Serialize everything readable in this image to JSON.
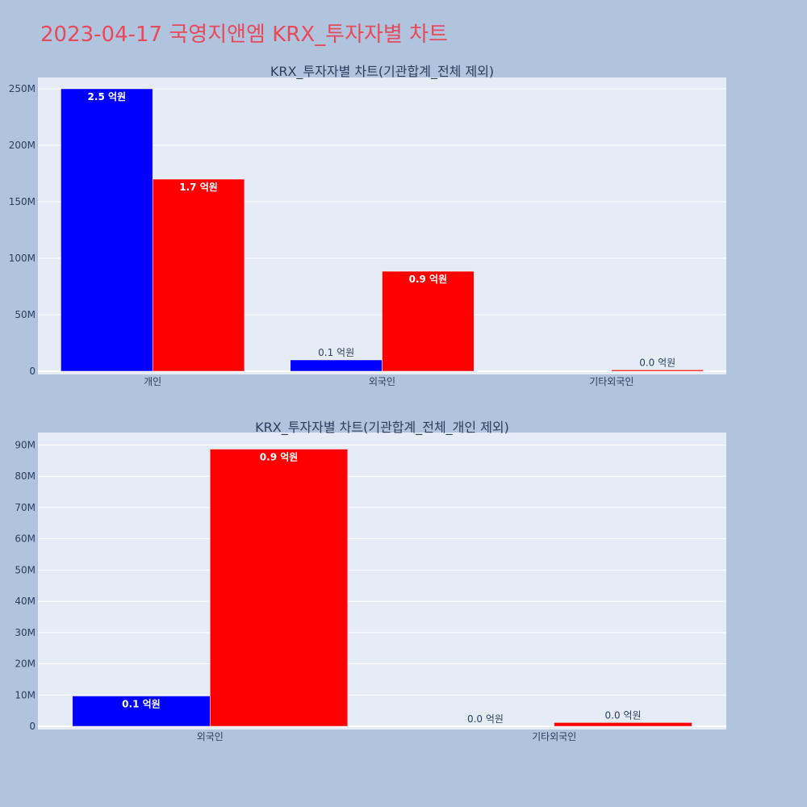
{
  "page": {
    "title": "2023-04-17 국영지앤엠 KRX_투자자별 차트"
  },
  "colors": {
    "background": "#b0c4de",
    "plot_background": "#e5ecf6",
    "series_buy": "#0000ff",
    "series_sell": "#ff0000",
    "title": "#e8495b",
    "text": "#2a3f5f"
  },
  "chart_data": [
    {
      "type": "bar",
      "title": "KRX_투자자별 차트(기관합계_전체 제외)",
      "categories": [
        "개인",
        "외국인",
        "기타외국인"
      ],
      "series": [
        {
          "color": "#0000ff",
          "values": [
            250000000,
            10000000,
            0
          ],
          "labels": [
            "2.5 억원",
            "0.1 억원",
            ""
          ]
        },
        {
          "color": "#ff0000",
          "values": [
            170000000,
            88500000,
            1200000
          ],
          "labels": [
            "1.7 억원",
            "0.9 억원",
            "0.0 억원"
          ]
        }
      ],
      "ylim": [
        0,
        260000000
      ],
      "yticks": [
        0,
        50000000,
        100000000,
        150000000,
        200000000,
        250000000
      ],
      "ytick_labels": [
        "0",
        "50M",
        "100M",
        "150M",
        "200M",
        "250M"
      ],
      "grid": true
    },
    {
      "type": "bar",
      "title": "KRX_투자자별 차트(기관합계_전체_개인 제외)",
      "categories": [
        "외국인",
        "기타외국인"
      ],
      "series": [
        {
          "color": "#0000ff",
          "values": [
            9700000,
            0
          ],
          "labels": [
            "0.1 억원",
            "0.0 억원"
          ]
        },
        {
          "color": "#ff0000",
          "values": [
            88700000,
            1200000
          ],
          "labels": [
            "0.9 억원",
            "0.0 억원"
          ]
        }
      ],
      "ylim": [
        0,
        94000000
      ],
      "yticks": [
        0,
        10000000,
        20000000,
        30000000,
        40000000,
        50000000,
        60000000,
        70000000,
        80000000,
        90000000
      ],
      "ytick_labels": [
        "0",
        "10M",
        "20M",
        "30M",
        "40M",
        "50M",
        "60M",
        "70M",
        "80M",
        "90M"
      ],
      "grid": true
    }
  ]
}
